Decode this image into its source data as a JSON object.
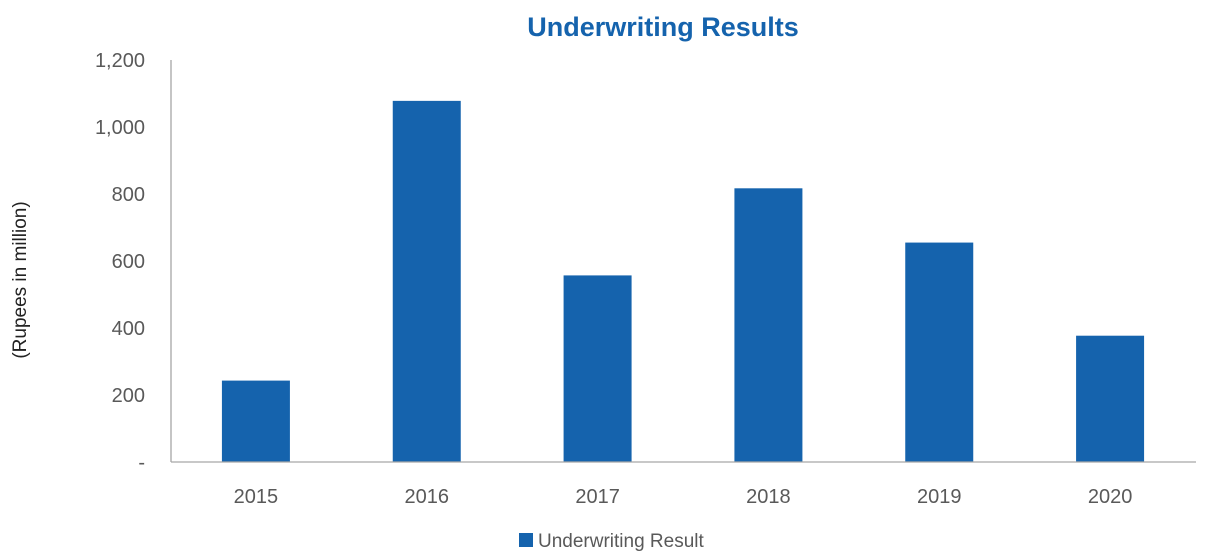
{
  "chart_data": {
    "type": "bar",
    "title": "Underwriting Results",
    "xlabel": "",
    "ylabel": "(Rupees in million)",
    "categories": [
      "2015",
      "2016",
      "2017",
      "2018",
      "2019",
      "2020"
    ],
    "series": [
      {
        "name": "Underwriting Result",
        "values": [
          243,
          1078,
          557,
          817,
          655,
          377
        ],
        "color": "#1563ad"
      }
    ],
    "ylim": [
      0,
      1200
    ],
    "yticks": [
      0,
      200,
      400,
      600,
      800,
      1000,
      1200
    ],
    "ytick_labels": [
      "-",
      "200",
      "400",
      "600",
      "800",
      "1,000",
      "1,200"
    ],
    "grid": false,
    "legend_position": "bottom"
  }
}
